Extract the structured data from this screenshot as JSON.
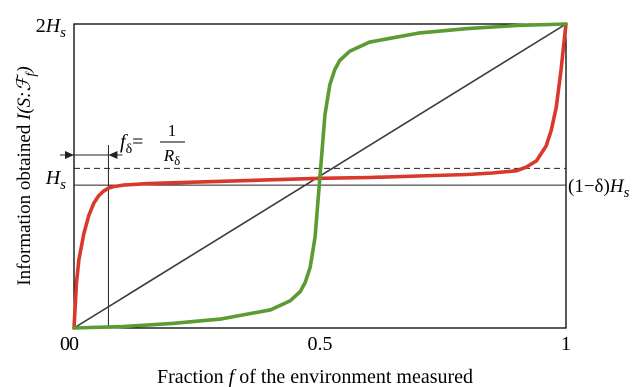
{
  "chart_data": {
    "type": "line",
    "title": "",
    "xlabel": {
      "prefix": "Fraction ",
      "var": "f",
      "suffix": " of the environment measured"
    },
    "ylabel": {
      "prefix": "Information obtained  ",
      "var": "I(S:ℱ",
      "sub": "f",
      "close": ")"
    },
    "xlim": [
      0,
      1
    ],
    "ylim": [
      0,
      2
    ],
    "x_ticks": [
      {
        "value": 0,
        "label": "0"
      },
      {
        "value": 0.5,
        "label": "0.5"
      },
      {
        "value": 1,
        "label": "1"
      }
    ],
    "y_ticks": [
      {
        "value": 0,
        "label": "0"
      },
      {
        "value": 1,
        "coef": "",
        "var": "H",
        "sub": "s"
      },
      {
        "value": 2,
        "coef": "2",
        "var": "H",
        "sub": "s"
      }
    ],
    "grid": false,
    "legend": "none",
    "series": [
      {
        "color": "#3a3a3a",
        "x": [
          0,
          1
        ],
        "y": [
          0,
          2
        ]
      },
      {
        "color": "#d9382d",
        "x": [
          0,
          0.005,
          0.01,
          0.02,
          0.03,
          0.04,
          0.05,
          0.06,
          0.07,
          0.08,
          0.09,
          0.1,
          0.15,
          0.2,
          0.3,
          0.4,
          0.5,
          0.6,
          0.7,
          0.8,
          0.85,
          0.9,
          0.92,
          0.94,
          0.96,
          0.97,
          0.98,
          0.99,
          0.995,
          1
        ],
        "y": [
          0,
          0.3,
          0.45,
          0.62,
          0.74,
          0.82,
          0.87,
          0.9,
          0.92,
          0.93,
          0.935,
          0.94,
          0.95,
          0.955,
          0.965,
          0.975,
          0.985,
          0.99,
          1.0,
          1.01,
          1.02,
          1.035,
          1.06,
          1.1,
          1.2,
          1.3,
          1.45,
          1.7,
          1.85,
          2
        ]
      },
      {
        "color": "#5c9a32",
        "x": [
          0,
          0.1,
          0.2,
          0.3,
          0.4,
          0.44,
          0.46,
          0.47,
          0.48,
          0.49,
          0.5,
          0.51,
          0.52,
          0.53,
          0.54,
          0.56,
          0.6,
          0.7,
          0.8,
          0.9,
          1
        ],
        "y": [
          0,
          0.01,
          0.03,
          0.06,
          0.12,
          0.18,
          0.24,
          0.3,
          0.4,
          0.6,
          1.0,
          1.4,
          1.6,
          1.7,
          1.76,
          1.82,
          1.88,
          1.94,
          1.97,
          1.99,
          2
        ]
      }
    ],
    "annotations": {
      "dashed_level": {
        "y": 1.05
      },
      "plateau_level": {
        "y": 0.94,
        "coef": "(1−δ)",
        "var": "H",
        "sub": "s"
      },
      "threshold": {
        "x": 0.07,
        "lhs": "f",
        "lhs_sub": "δ",
        "eq": "=",
        "num": "1",
        "den": "R",
        "den_sub": "δ"
      }
    }
  }
}
